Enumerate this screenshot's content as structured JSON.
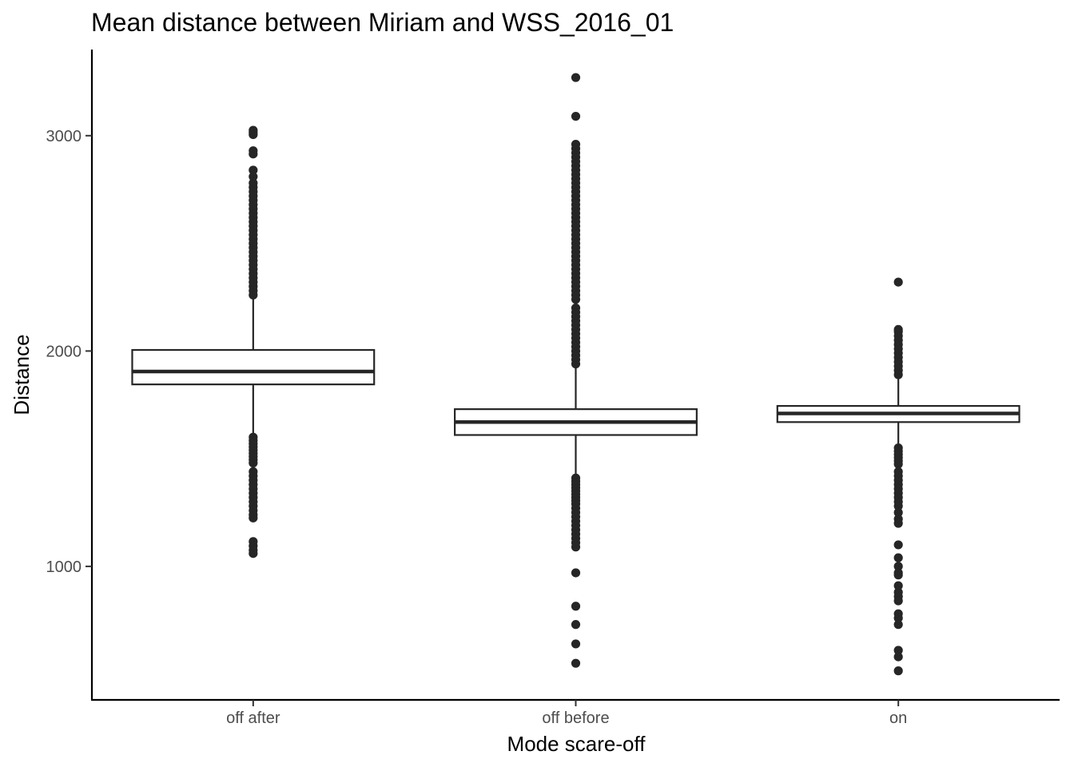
{
  "chart_data": {
    "type": "boxplot",
    "title": "Mean distance between Miriam and WSS_2016_01",
    "xlabel": "Mode scare-off",
    "ylabel": "Distance",
    "ylim": [
      380,
      3400
    ],
    "yticks": [
      1000,
      2000,
      3000
    ],
    "grid": false,
    "legend": "none",
    "categories": [
      "off after",
      "off before",
      "on"
    ],
    "boxes": [
      {
        "category": "off after",
        "lower_whisker": 1610,
        "q1": 1845,
        "median": 1905,
        "q3": 2005,
        "upper_whisker": 2245,
        "outliers": [
          3025,
          3015,
          3005,
          2930,
          2915,
          2840,
          2810,
          2780,
          2760,
          2740,
          2720,
          2700,
          2680,
          2660,
          2640,
          2620,
          2600,
          2580,
          2560,
          2540,
          2520,
          2500,
          2480,
          2460,
          2440,
          2420,
          2400,
          2380,
          2360,
          2340,
          2320,
          2300,
          2280,
          2260,
          1600,
          1585,
          1570,
          1555,
          1540,
          1525,
          1510,
          1495,
          1480,
          1440,
          1420,
          1400,
          1380,
          1360,
          1340,
          1320,
          1300,
          1280,
          1260,
          1240,
          1225,
          1115,
          1095,
          1075,
          1060
        ]
      },
      {
        "category": "off before",
        "lower_whisker": 1420,
        "q1": 1610,
        "median": 1670,
        "q3": 1730,
        "upper_whisker": 1920,
        "outliers": [
          3270,
          3090,
          2960,
          2940,
          2920,
          2900,
          2880,
          2860,
          2840,
          2820,
          2800,
          2780,
          2760,
          2740,
          2720,
          2700,
          2680,
          2660,
          2640,
          2620,
          2600,
          2580,
          2560,
          2540,
          2520,
          2500,
          2480,
          2460,
          2440,
          2420,
          2400,
          2380,
          2360,
          2340,
          2320,
          2300,
          2280,
          2260,
          2240,
          2200,
          2180,
          2160,
          2140,
          2120,
          2100,
          2080,
          2060,
          2040,
          2020,
          2000,
          1980,
          1960,
          1940,
          1410,
          1395,
          1380,
          1365,
          1350,
          1335,
          1320,
          1305,
          1290,
          1270,
          1250,
          1230,
          1210,
          1190,
          1170,
          1150,
          1130,
          1110,
          1090,
          970,
          815,
          730,
          640,
          550
        ]
      },
      {
        "category": "on",
        "lower_whisker": 1560,
        "q1": 1670,
        "median": 1710,
        "q3": 1745,
        "upper_whisker": 1870,
        "outliers": [
          2320,
          2100,
          2090,
          2070,
          2050,
          2030,
          2010,
          1990,
          1970,
          1950,
          1930,
          1910,
          1890,
          1550,
          1535,
          1520,
          1505,
          1490,
          1475,
          1440,
          1420,
          1400,
          1380,
          1360,
          1340,
          1320,
          1300,
          1280,
          1250,
          1220,
          1200,
          1100,
          1040,
          1000,
          970,
          960,
          910,
          880,
          860,
          840,
          780,
          760,
          730,
          610,
          580,
          515
        ]
      }
    ]
  }
}
